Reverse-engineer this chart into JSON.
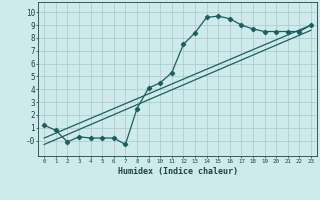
{
  "title": "",
  "xlabel": "Humidex (Indice chaleur)",
  "ylabel": "",
  "bg_color": "#ceeaea",
  "grid_color": "#aecece",
  "line_color": "#1a6060",
  "xlim": [
    -0.5,
    23.5
  ],
  "ylim": [
    -1.2,
    10.8
  ],
  "xticks": [
    0,
    1,
    2,
    3,
    4,
    5,
    6,
    7,
    8,
    9,
    10,
    11,
    12,
    13,
    14,
    15,
    16,
    17,
    18,
    19,
    20,
    21,
    22,
    23
  ],
  "yticks": [
    0,
    1,
    2,
    3,
    4,
    5,
    6,
    7,
    8,
    9,
    10
  ],
  "ytick_labels": [
    "-0",
    "1",
    "2",
    "3",
    "4",
    "5",
    "6",
    "7",
    "8",
    "9",
    "10"
  ],
  "line1_x": [
    0,
    1,
    2,
    3,
    4,
    5,
    6,
    7,
    8,
    9,
    10,
    11,
    12,
    13,
    14,
    15,
    16,
    17,
    18,
    19,
    20,
    21,
    22,
    23
  ],
  "line1_y": [
    1.2,
    0.8,
    -0.1,
    0.3,
    0.2,
    0.2,
    0.2,
    -0.3,
    2.5,
    4.1,
    4.5,
    5.3,
    7.5,
    8.4,
    9.6,
    9.7,
    9.5,
    9.0,
    8.7,
    8.5,
    8.5,
    8.5,
    8.5,
    9.0
  ],
  "line2_x": [
    0,
    23
  ],
  "line2_y": [
    0.2,
    9.0
  ],
  "line3_x": [
    0,
    23
  ],
  "line3_y": [
    -0.3,
    8.6
  ],
  "marker": "D",
  "markersize": 2.2,
  "linewidth": 0.9
}
